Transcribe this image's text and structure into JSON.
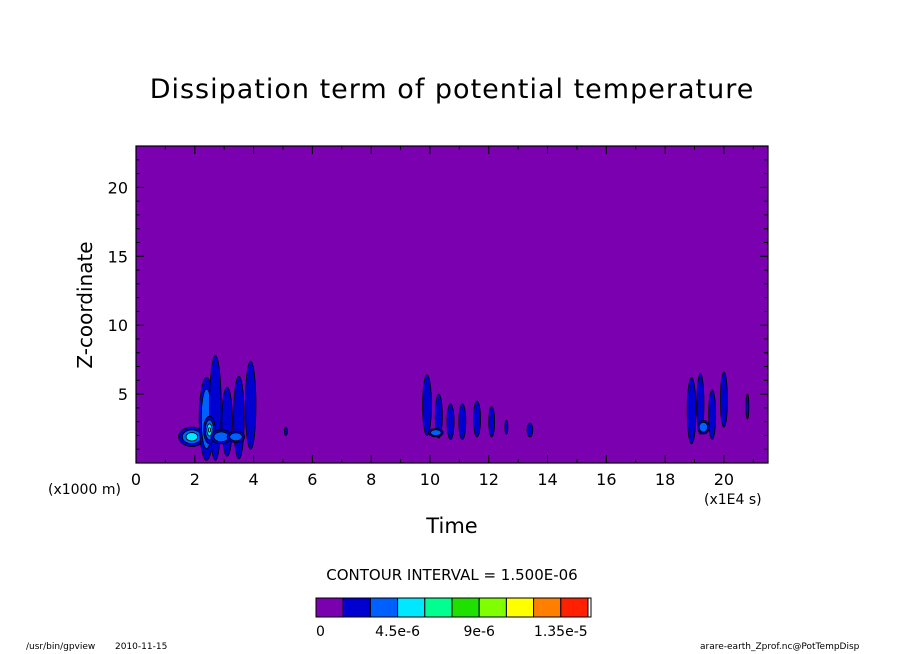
{
  "chart_data": {
    "type": "heatmap",
    "title": "Dissipation term of potential temperature",
    "xlabel": "Time",
    "ylabel": "Z-coordinate",
    "x_unit_label": "(x1E4 s)",
    "y_unit_label": "(x1000 m)",
    "xlim": [
      0,
      21.5
    ],
    "ylim": [
      0,
      23
    ],
    "x_ticks": [
      "0",
      "2",
      "4",
      "6",
      "8",
      "10",
      "12",
      "14",
      "16",
      "18",
      "20"
    ],
    "y_ticks": [
      "5",
      "10",
      "15",
      "20"
    ],
    "contour_interval_text": "CONTOUR INTERVAL = 1.500E-06",
    "colorbar": {
      "levels": [
        0,
        1.5e-06,
        3e-06,
        4.5e-06,
        6e-06,
        7.5e-06,
        9e-06,
        1.05e-05,
        1.2e-05,
        1.35e-05,
        1.5e-05
      ],
      "colors": [
        "#7a00b0",
        "#0000d0",
        "#0060ff",
        "#00e8ff",
        "#00ff90",
        "#20e000",
        "#80ff00",
        "#ffff00",
        "#ff8000",
        "#ff2000"
      ],
      "tick_labels": [
        "0",
        "4.5e-6",
        "9e-6",
        "1.35e-5"
      ],
      "tick_values": [
        0,
        4.5e-06,
        9e-06,
        1.35e-05
      ]
    },
    "background_color": "#7a00b0",
    "features": [
      {
        "x": 1.9,
        "z": 1.9,
        "w": 0.45,
        "h": 0.7,
        "level": 3
      },
      {
        "x": 2.4,
        "z": 3.2,
        "w": 0.25,
        "h": 3.0,
        "level": 2
      },
      {
        "x": 2.7,
        "z": 4.0,
        "w": 0.2,
        "h": 3.8,
        "level": 1
      },
      {
        "x": 2.5,
        "z": 2.4,
        "w": 0.2,
        "h": 1.0,
        "level": 4
      },
      {
        "x": 3.1,
        "z": 3.0,
        "w": 0.18,
        "h": 2.5,
        "level": 1
      },
      {
        "x": 3.5,
        "z": 3.3,
        "w": 0.18,
        "h": 3.0,
        "level": 1
      },
      {
        "x": 3.9,
        "z": 4.2,
        "w": 0.18,
        "h": 3.2,
        "level": 1
      },
      {
        "x": 2.9,
        "z": 1.9,
        "w": 0.35,
        "h": 0.5,
        "level": 2
      },
      {
        "x": 3.4,
        "z": 1.9,
        "w": 0.3,
        "h": 0.4,
        "level": 2
      },
      {
        "x": 5.1,
        "z": 2.3,
        "w": 0.05,
        "h": 0.3,
        "level": 1
      },
      {
        "x": 9.9,
        "z": 4.2,
        "w": 0.15,
        "h": 2.2,
        "level": 1
      },
      {
        "x": 10.3,
        "z": 3.4,
        "w": 0.12,
        "h": 1.6,
        "level": 1
      },
      {
        "x": 10.7,
        "z": 3.0,
        "w": 0.12,
        "h": 1.3,
        "level": 1
      },
      {
        "x": 11.1,
        "z": 3.0,
        "w": 0.12,
        "h": 1.3,
        "level": 1
      },
      {
        "x": 11.6,
        "z": 3.2,
        "w": 0.12,
        "h": 1.3,
        "level": 1
      },
      {
        "x": 12.1,
        "z": 3.0,
        "w": 0.1,
        "h": 1.1,
        "level": 1
      },
      {
        "x": 10.2,
        "z": 2.2,
        "w": 0.25,
        "h": 0.3,
        "level": 2
      },
      {
        "x": 12.6,
        "z": 2.6,
        "w": 0.05,
        "h": 0.5,
        "level": 1
      },
      {
        "x": 13.4,
        "z": 2.4,
        "w": 0.1,
        "h": 0.5,
        "level": 1
      },
      {
        "x": 18.9,
        "z": 3.8,
        "w": 0.15,
        "h": 2.4,
        "level": 1
      },
      {
        "x": 19.2,
        "z": 4.3,
        "w": 0.12,
        "h": 2.2,
        "level": 1
      },
      {
        "x": 19.6,
        "z": 3.5,
        "w": 0.12,
        "h": 1.8,
        "level": 1
      },
      {
        "x": 20.0,
        "z": 4.6,
        "w": 0.12,
        "h": 2.0,
        "level": 1
      },
      {
        "x": 19.3,
        "z": 2.6,
        "w": 0.2,
        "h": 0.5,
        "level": 2
      },
      {
        "x": 20.8,
        "z": 4.1,
        "w": 0.05,
        "h": 0.9,
        "level": 1
      }
    ]
  },
  "footer": {
    "program": "/usr/bin/gpview",
    "date": "2010-11-15",
    "source": "arare-earth_Zprof.nc@PotTempDisp"
  }
}
